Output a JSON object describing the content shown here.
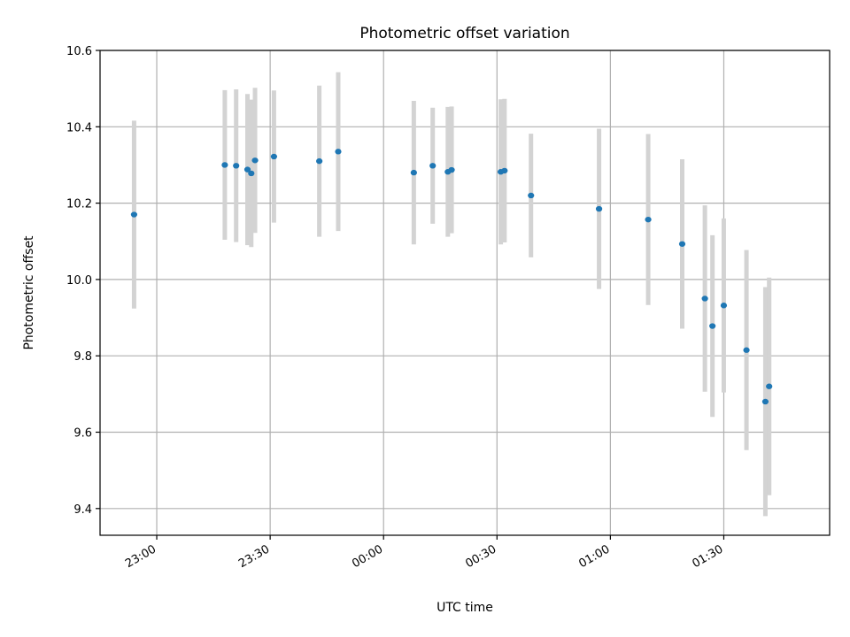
{
  "chart_data": {
    "type": "scatter",
    "title": "Photometric offset variation",
    "xlabel": "UTC time",
    "ylabel": "Photometric offset",
    "x_unit": "UTC time (HH:MM, night spanning midnight)",
    "xlim": [
      "22:45",
      "01:58"
    ],
    "ylim": [
      9.33,
      10.6
    ],
    "yticks": [
      9.4,
      9.6,
      9.8,
      10.0,
      10.2,
      10.4,
      10.6
    ],
    "ytick_labels": [
      "9.4",
      "9.6",
      "9.8",
      "10.0",
      "10.2",
      "10.4",
      "10.6"
    ],
    "xticks": [
      "23:00",
      "23:30",
      "00:00",
      "00:30",
      "01:00",
      "01:30"
    ],
    "grid": true,
    "errorbar_color": "#d3d3d3",
    "marker_color": "#1f77b4",
    "points": [
      {
        "x": "22:54",
        "y": 10.17,
        "err": 0.246
      },
      {
        "x": "23:18",
        "y": 10.3,
        "err": 0.196
      },
      {
        "x": "23:21",
        "y": 10.298,
        "err": 0.2
      },
      {
        "x": "23:24",
        "y": 10.288,
        "err": 0.198
      },
      {
        "x": "23:25",
        "y": 10.278,
        "err": 0.193
      },
      {
        "x": "23:26",
        "y": 10.312,
        "err": 0.19
      },
      {
        "x": "23:31",
        "y": 10.322,
        "err": 0.173
      },
      {
        "x": "23:43",
        "y": 10.31,
        "err": 0.198
      },
      {
        "x": "23:48",
        "y": 10.335,
        "err": 0.208
      },
      {
        "x": "00:08",
        "y": 10.28,
        "err": 0.188
      },
      {
        "x": "00:13",
        "y": 10.298,
        "err": 0.152
      },
      {
        "x": "00:17",
        "y": 10.282,
        "err": 0.17
      },
      {
        "x": "00:18",
        "y": 10.287,
        "err": 0.166
      },
      {
        "x": "00:31",
        "y": 10.282,
        "err": 0.19
      },
      {
        "x": "00:32",
        "y": 10.285,
        "err": 0.188
      },
      {
        "x": "00:39",
        "y": 10.22,
        "err": 0.162
      },
      {
        "x": "00:57",
        "y": 10.185,
        "err": 0.21
      },
      {
        "x": "01:10",
        "y": 10.157,
        "err": 0.224
      },
      {
        "x": "01:19",
        "y": 10.093,
        "err": 0.222
      },
      {
        "x": "01:25",
        "y": 9.95,
        "err": 0.244
      },
      {
        "x": "01:27",
        "y": 9.878,
        "err": 0.238
      },
      {
        "x": "01:30",
        "y": 9.932,
        "err": 0.228
      },
      {
        "x": "01:36",
        "y": 9.815,
        "err": 0.262
      },
      {
        "x": "01:41",
        "y": 9.68,
        "err": 0.3
      },
      {
        "x": "01:42",
        "y": 9.72,
        "err": 0.285
      }
    ]
  }
}
